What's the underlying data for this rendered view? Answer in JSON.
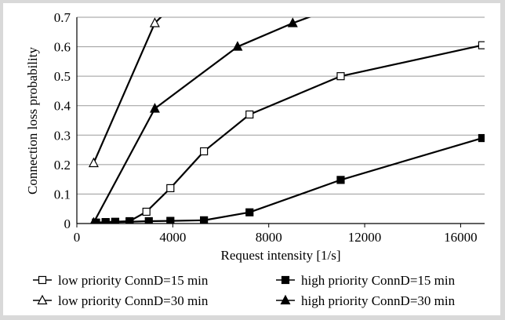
{
  "chart_data": {
    "type": "line",
    "title": "",
    "xlabel": "Request intensity [1/s]",
    "ylabel": "Connection loss probability",
    "xlim": [
      0,
      17000
    ],
    "ylim": [
      0,
      0.7
    ],
    "xticks": [
      0,
      4000,
      8000,
      12000,
      16000
    ],
    "yticks": [
      0,
      0.1,
      0.2,
      0.3,
      0.4,
      0.5,
      0.6,
      0.7
    ],
    "grid": "horizontal",
    "legend_position": "bottom",
    "series": [
      {
        "name": "low priority ConnD=15 min",
        "marker": "open-square",
        "points": [
          [
            800,
            0.003
          ],
          [
            1200,
            0.005
          ],
          [
            1600,
            0.006
          ],
          [
            2200,
            0.008
          ],
          [
            2900,
            0.04
          ],
          [
            3900,
            0.12
          ],
          [
            5300,
            0.245
          ],
          [
            7200,
            0.37
          ],
          [
            11000,
            0.5
          ],
          [
            16900,
            0.605
          ]
        ]
      },
      {
        "name": "low priority ConnD=30 min",
        "marker": "open-triangle",
        "points": [
          [
            700,
            0.205
          ],
          [
            3250,
            0.68
          ],
          [
            4000,
            0.74
          ]
        ]
      },
      {
        "name": "high priority ConnD=15 min",
        "marker": "filled-square",
        "points": [
          [
            800,
            0.003
          ],
          [
            1200,
            0.004
          ],
          [
            1600,
            0.005
          ],
          [
            2200,
            0.006
          ],
          [
            3000,
            0.008
          ],
          [
            3900,
            0.009
          ],
          [
            5300,
            0.011
          ],
          [
            7200,
            0.038
          ],
          [
            11000,
            0.148
          ],
          [
            16900,
            0.29
          ]
        ]
      },
      {
        "name": "high priority ConnD=30 min",
        "marker": "filled-triangle",
        "points": [
          [
            700,
            0.003
          ],
          [
            3250,
            0.39
          ],
          [
            6700,
            0.6
          ],
          [
            9000,
            0.68
          ],
          [
            11000,
            0.74
          ]
        ]
      }
    ]
  }
}
